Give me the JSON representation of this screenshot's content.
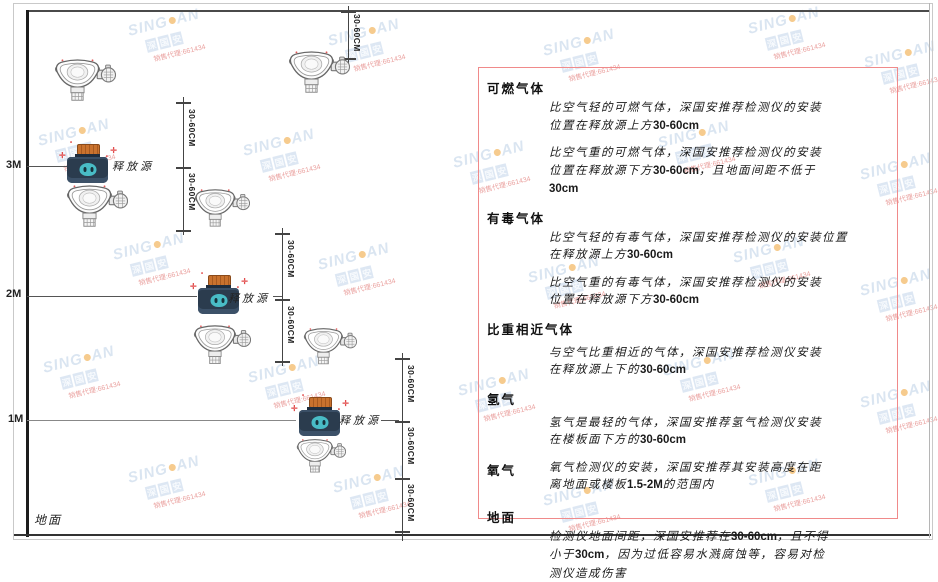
{
  "diagram": {
    "height_labels": {
      "h3": "3M",
      "h2": "2M",
      "h1": "1M"
    },
    "ground_label": "地面",
    "release_source_label": "释放源",
    "dimension_label": "30-60CM"
  },
  "panel": {
    "sections": [
      {
        "title": "可燃气体",
        "paras": [
          [
            "比空气轻的可燃气体，深国安推荐检测仪的安装",
            "位置在释放源上方30-60cm"
          ],
          [
            "比空气重的可燃气体，深国安推荐检测仪的安装",
            "位置在释放源下方30-60cm，且地面间距不低于",
            "30cm"
          ]
        ]
      },
      {
        "title": "有毒气体",
        "paras": [
          [
            "比空气轻的有毒气体，深国安推荐检测仪的安装位置",
            "在释放源上方30-60cm"
          ],
          [
            "比空气重的有毒气体，深国安推荐检测仪的安装",
            "位置在释放源下方30-60cm"
          ]
        ]
      },
      {
        "title": "比重相近气体",
        "paras": [
          [
            "与空气比重相近的气体，深国安推荐检测仪安装",
            "在释放源上下的30-60cm"
          ]
        ]
      },
      {
        "title": "氢气",
        "paras": [
          [
            "氢气是最轻的气体，深国安推荐氢气检测仪安装",
            "在楼板面下方的30-60cm"
          ]
        ]
      },
      {
        "title": "氧气",
        "paras": [
          [
            "氧气检测仪的安装，深国安推荐其安装高度在距",
            "离地面或楼板1.5-2M的范围内"
          ]
        ]
      },
      {
        "title": "地面",
        "paras": [
          [
            "检测仪地面间距，深国安推荐在30-60cm，且不得",
            "小于30cm，因为过低容易水溅腐蚀等，容易对检",
            "测仪造成伤害"
          ]
        ]
      }
    ]
  },
  "watermark": {
    "brand_part1": "SING",
    "brand_part2": "AN",
    "brand_cn": "深国安",
    "sales_note": "销售代理:661434"
  },
  "colors": {
    "panel_border": "#f08a8a",
    "source_cap": "#c9722e",
    "source_body": "#2b3c4e",
    "source_face": "#49bcc6",
    "watermark_blue": "#bdd0e6",
    "watermark_dot": "#f0a232",
    "watermark_red": "#d9534f"
  }
}
